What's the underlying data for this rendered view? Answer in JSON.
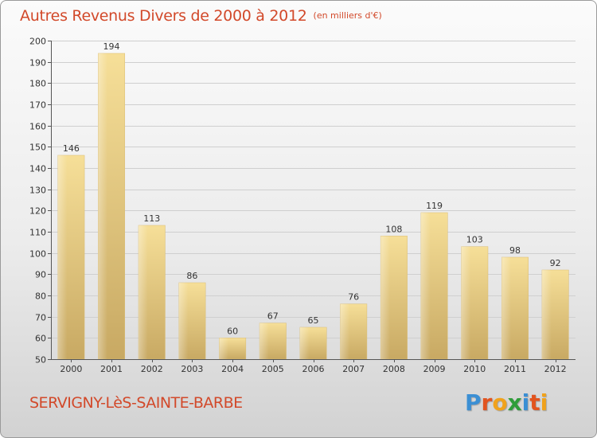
{
  "chart_data": {
    "type": "bar",
    "title": "Autres Revenus Divers de 2000 à 2012",
    "unit": "(en milliers d'€)",
    "categories": [
      "2000",
      "2001",
      "2002",
      "2003",
      "2004",
      "2005",
      "2006",
      "2007",
      "2008",
      "2009",
      "2010",
      "2011",
      "2012"
    ],
    "values": [
      146,
      194,
      113,
      86,
      60,
      67,
      65,
      76,
      108,
      119,
      103,
      98,
      92
    ],
    "ylim": [
      50,
      200
    ],
    "yticks": [
      50,
      60,
      70,
      80,
      90,
      100,
      110,
      120,
      130,
      140,
      150,
      160,
      170,
      180,
      190,
      200
    ],
    "grid": true,
    "bar_color": "#e8c97a"
  },
  "location": "SERVIGNY-LèS-SAINTE-BARBE",
  "brand": {
    "name": "Proxiti",
    "letter_colors": [
      "#3b8fd4",
      "#e2541f",
      "#f0a21c",
      "#2f9d3a",
      "#3b8fd4",
      "#e2541f",
      "#f0a21c"
    ]
  }
}
